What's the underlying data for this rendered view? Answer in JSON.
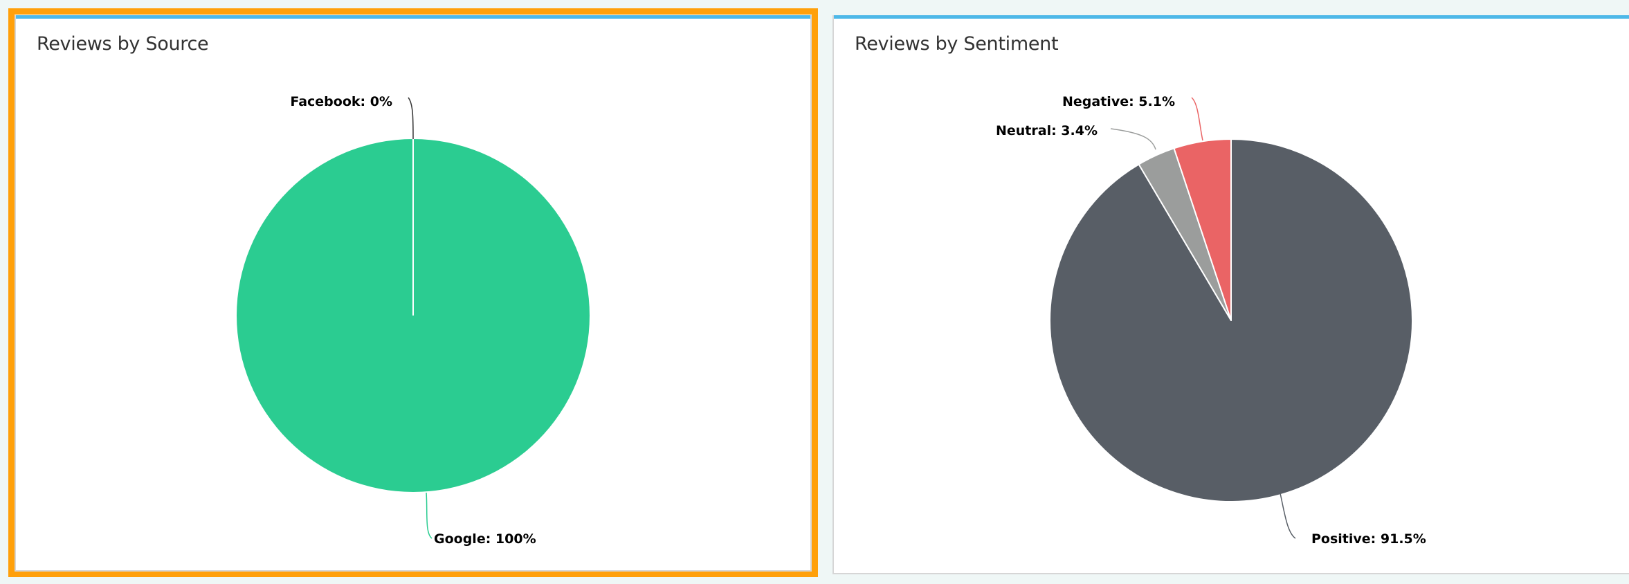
{
  "chart_data": [
    {
      "type": "pie",
      "title": "Reviews by Source",
      "slices": [
        {
          "label": "Google",
          "value": 100,
          "display": "Google: 100%",
          "color": "#2bcc91"
        },
        {
          "label": "Facebook",
          "value": 0,
          "display": "Facebook: 0%",
          "color": "#333333"
        }
      ]
    },
    {
      "type": "pie",
      "title": "Reviews by Sentiment",
      "slices": [
        {
          "label": "Positive",
          "value": 91.5,
          "display": "Positive: 91.5%",
          "color": "#585e66"
        },
        {
          "label": "Neutral",
          "value": 3.4,
          "display": "Neutral: 3.4%",
          "color": "#9b9d9c"
        },
        {
          "label": "Negative",
          "value": 5.1,
          "display": "Negative: 5.1%",
          "color": "#ea6465"
        }
      ]
    }
  ],
  "colors": {
    "highlight_frame": "#ffa00a",
    "panel_accent": "#4db8e8"
  }
}
